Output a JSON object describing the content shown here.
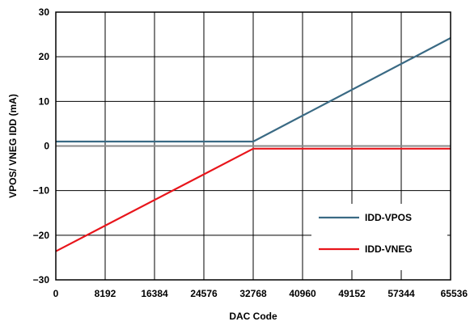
{
  "chart_data": {
    "type": "line",
    "title": "",
    "xlabel": "DAC Code",
    "ylabel": "VPOS/ VNEG IDD (mA)",
    "xlim": [
      0,
      65536
    ],
    "ylim": [
      -30,
      30
    ],
    "x_ticks": [
      0,
      8192,
      16384,
      24576,
      32768,
      40960,
      49152,
      57344,
      65536
    ],
    "x_tick_labels": [
      "0",
      "8192",
      "16384",
      "24576",
      "32768",
      "40960",
      "49152",
      "57344",
      "65536"
    ],
    "y_ticks": [
      30,
      20,
      10,
      0,
      -10,
      -20,
      -30
    ],
    "y_tick_labels": [
      "30",
      "20",
      "10",
      "0",
      "−10",
      "−20",
      "−30"
    ],
    "grid": true,
    "legend_position": "bottom-right",
    "series": [
      {
        "name": "IDD-VPOS",
        "color": "#3a6a84",
        "points": [
          [
            0,
            1.0
          ],
          [
            32768,
            1.0
          ],
          [
            65536,
            24.2
          ]
        ]
      },
      {
        "name": "IDD-VNEG",
        "color": "#e8151b",
        "points": [
          [
            0,
            -23.6
          ],
          [
            32768,
            -0.6
          ],
          [
            65536,
            -0.6
          ]
        ]
      }
    ]
  }
}
